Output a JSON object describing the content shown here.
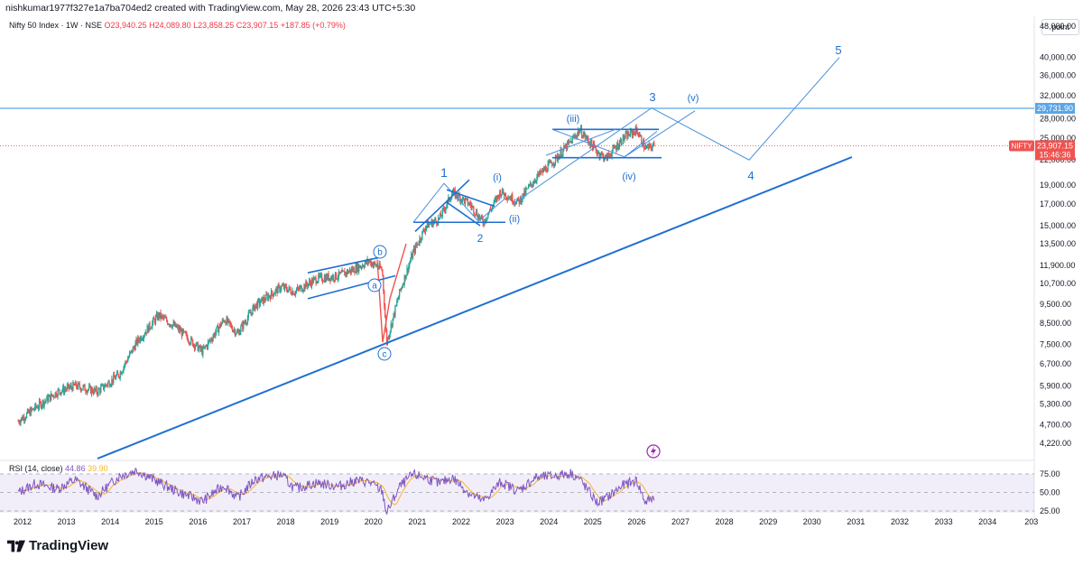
{
  "header": {
    "title": "nishkumar1977f327e1a7ba704ed2 created with TradingView.com, May 28, 2026 23:43 UTC+5:30"
  },
  "legend": {
    "symbol": "Nifty 50 Index · 1W · NSE",
    "open": "O23,940.25",
    "high": "H24,089.80",
    "low": "L23,858.25",
    "close": "C23,907.15",
    "change": "+187.85 (+0.79%)"
  },
  "price_axis": {
    "unit_label": "point",
    "ticks": [
      "48,000.00",
      "40,000.00",
      "36,000.00",
      "32,000.00",
      "28,000.00",
      "25,000.00",
      "22,000.00",
      "19,000.00",
      "17,000.00",
      "15,000.00",
      "13,500.00",
      "11,900.00",
      "10,700.00",
      "9,500.00",
      "8,500.00",
      "7,500.00",
      "6,700.00",
      "5,900.00",
      "5,300.00",
      "4,700.00",
      "4,220.00"
    ],
    "level_tag": "29,731.90",
    "symbol_tag": "NIFTY",
    "price_tag": "23,907.15",
    "countdown_tag": "15:46:36"
  },
  "rsi": {
    "label": "RSI (14, close)",
    "value": "44.86",
    "ma_value": "39.90",
    "ticks": [
      "75.00",
      "50.00",
      "25.00"
    ]
  },
  "time_axis": [
    "2012",
    "2013",
    "2014",
    "2015",
    "2016",
    "2017",
    "2018",
    "2019",
    "2020",
    "2021",
    "2022",
    "2023",
    "2024",
    "2025",
    "2026",
    "2027",
    "2028",
    "2029",
    "2030",
    "2031",
    "2032",
    "2033",
    "2034",
    "203"
  ],
  "wave_labels": [
    "1",
    "2",
    "3",
    "4",
    "5",
    "(i)",
    "(ii)",
    "(iii)",
    "(iv)",
    "(v)",
    "a",
    "b",
    "c"
  ],
  "footer": {
    "brand": "TradingView"
  },
  "colors": {
    "up": "#26a69a",
    "down": "#ef5350",
    "drawing": "#1e6fd0",
    "rsi": "#7e57c2",
    "rsi_ma": "#f7b529"
  },
  "chart_data": {
    "type": "line",
    "title": "Nifty 50 Index · 1W · NSE",
    "scale": "log",
    "ylim": [
      4000,
      50000
    ],
    "x": [
      2011.9,
      2012.3,
      2012.8,
      2013.2,
      2013.7,
      2014.2,
      2014.6,
      2015.1,
      2015.5,
      2016.1,
      2016.6,
      2016.9,
      2017.3,
      2017.9,
      2018.2,
      2018.7,
      2019.2,
      2019.6,
      2019.9,
      2020.2,
      2020.3,
      2020.6,
      2020.9,
      2021.2,
      2021.5,
      2021.8,
      2022.2,
      2022.5,
      2022.9,
      2023.3,
      2023.7,
      2024.1,
      2024.5,
      2024.7,
      2025.1,
      2025.3,
      2025.7,
      2026.0,
      2026.2,
      2026.4
    ],
    "series": [
      {
        "values": [
          4800,
          5200,
          5700,
          5900,
          5700,
          6300,
          7600,
          8900,
          8300,
          7200,
          8700,
          8000,
          9400,
          10500,
          10200,
          11000,
          11200,
          11700,
          12200,
          11600,
          7600,
          10200,
          12800,
          15000,
          15600,
          18200,
          17000,
          15300,
          18300,
          17200,
          19800,
          21800,
          24500,
          26200,
          23100,
          22200,
          25000,
          26200,
          23500,
          23907
        ]
      }
    ],
    "rsi_ylim": [
      0,
      100
    ],
    "rsi": [
      50,
      62,
      55,
      67,
      45,
      72,
      80,
      64,
      52,
      38,
      60,
      42,
      68,
      74,
      55,
      63,
      58,
      66,
      64,
      52,
      22,
      58,
      74,
      70,
      62,
      70,
      48,
      38,
      64,
      52,
      70,
      72,
      76,
      68,
      36,
      42,
      60,
      66,
      36,
      44.86
    ]
  }
}
